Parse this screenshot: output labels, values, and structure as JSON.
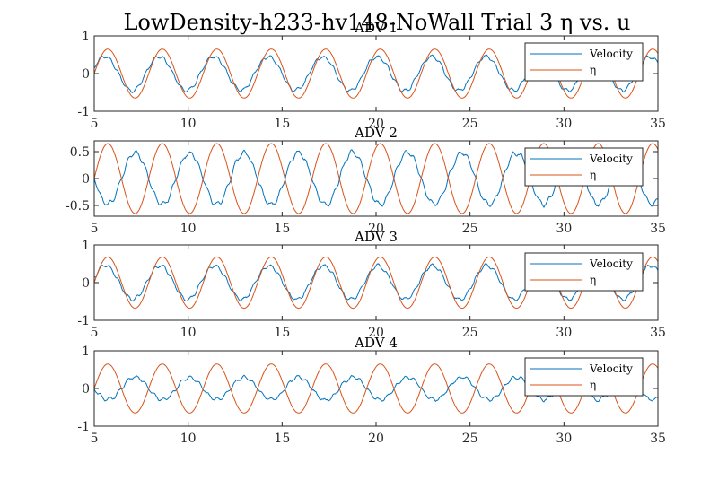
{
  "figure": {
    "title": "LowDensity-h233-hv148-NoWall Trial 3 η vs. u",
    "colors": {
      "velocity": "#0072BD",
      "eta": "#D95319",
      "axes": "#262626"
    }
  },
  "chart_data": [
    {
      "type": "line",
      "title": "ADV 1",
      "xlim": [
        5,
        35
      ],
      "ylim": [
        -1,
        1
      ],
      "xticks": [
        5,
        10,
        15,
        20,
        25,
        30,
        35
      ],
      "yticks": [
        -1,
        0,
        1
      ],
      "ytick_labels": [
        "-1",
        "0",
        "1"
      ],
      "grid": false,
      "legend": "top-right",
      "wave_period": 2.9,
      "series": [
        {
          "name": "Velocity",
          "kind": "velocity",
          "amplitude": 0.45,
          "phase_deg": 20
        },
        {
          "name": "η",
          "kind": "eta",
          "amplitude": 0.65,
          "phase_deg": 0
        }
      ]
    },
    {
      "type": "line",
      "title": "ADV 2",
      "xlim": [
        5,
        35
      ],
      "ylim": [
        -0.7,
        0.7
      ],
      "xticks": [
        5,
        10,
        15,
        20,
        25,
        30,
        35
      ],
      "yticks": [
        -0.5,
        0,
        0.5
      ],
      "ytick_labels": [
        "-0.5",
        "0",
        "0.5"
      ],
      "grid": false,
      "legend": "top-right",
      "wave_period": 2.9,
      "series": [
        {
          "name": "Velocity",
          "kind": "velocity",
          "amplitude": 0.48,
          "phase_deg": 180
        },
        {
          "name": "η",
          "kind": "eta",
          "amplitude": 0.65,
          "phase_deg": 0
        }
      ]
    },
    {
      "type": "line",
      "title": "ADV 3",
      "xlim": [
        5,
        35
      ],
      "ylim": [
        -1,
        1
      ],
      "xticks": [
        5,
        10,
        15,
        20,
        25,
        30,
        35
      ],
      "yticks": [
        -1,
        0,
        1
      ],
      "ytick_labels": [
        "-1",
        "0",
        "1"
      ],
      "grid": false,
      "legend": "top-right",
      "wave_period": 2.9,
      "series": [
        {
          "name": "Velocity",
          "kind": "velocity",
          "amplitude": 0.45,
          "phase_deg": 15
        },
        {
          "name": "η",
          "kind": "eta",
          "amplitude": 0.68,
          "phase_deg": 0
        }
      ]
    },
    {
      "type": "line",
      "title": "ADV 4",
      "xlim": [
        5,
        35
      ],
      "ylim": [
        -1,
        1
      ],
      "xticks": [
        5,
        10,
        15,
        20,
        25,
        30,
        35
      ],
      "yticks": [
        -1,
        0,
        1
      ],
      "ytick_labels": [
        "-1",
        "0",
        "1"
      ],
      "grid": false,
      "legend": "top-right",
      "wave_period": 2.9,
      "series": [
        {
          "name": "Velocity",
          "kind": "velocity",
          "amplitude": 0.3,
          "phase_deg": 180
        },
        {
          "name": "η",
          "kind": "eta",
          "amplitude": 0.65,
          "phase_deg": 0
        }
      ]
    }
  ]
}
